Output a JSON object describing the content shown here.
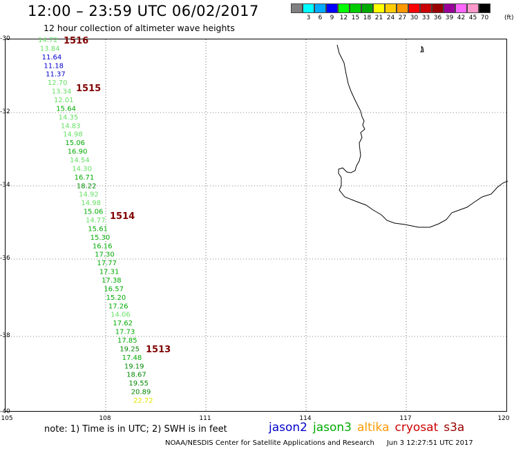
{
  "header": {
    "title": "12:00 – 23:59 UTC 06/02/2017",
    "subtitle": "12 hour collection of altimeter wave heights"
  },
  "colorbar": {
    "colors": [
      "#808080",
      "#00ffff",
      "#00aaff",
      "#0000ff",
      "#00ff00",
      "#00cc00",
      "#00aa00",
      "#ffff00",
      "#ffcc00",
      "#ff9900",
      "#ff0000",
      "#cc0000",
      "#990000",
      "#990099",
      "#ff66ff",
      "#ff99cc",
      "#000000"
    ],
    "labels": [
      "",
      "3",
      "6",
      "9",
      "12",
      "15",
      "18",
      "21",
      "24",
      "27",
      "30",
      "33",
      "36",
      "39",
      "42",
      "45",
      "70"
    ],
    "unit": "(ft)"
  },
  "axes": {
    "lat_labels": [
      "-30",
      "-32",
      "-34",
      "-36",
      "-38",
      "-40"
    ],
    "lon_labels": [
      "105",
      "108",
      "111",
      "114",
      "117",
      "120"
    ]
  },
  "map": {
    "passes": [
      "1516",
      "1515",
      "1514",
      "1513"
    ],
    "wave_heights": [
      {
        "v": "14.72",
        "c": "#66e066"
      },
      {
        "v": "13.84",
        "c": "#66e066"
      },
      {
        "v": "11.64",
        "c": "#0000cc"
      },
      {
        "v": "11.18",
        "c": "#0000cc"
      },
      {
        "v": "11.37",
        "c": "#0000cc"
      },
      {
        "v": "12.70",
        "c": "#66e066"
      },
      {
        "v": "13.34",
        "c": "#66e066"
      },
      {
        "v": "12.01",
        "c": "#66e066"
      },
      {
        "v": "15.64",
        "c": "#00aa00"
      },
      {
        "v": "14.35",
        "c": "#66e066"
      },
      {
        "v": "14.83",
        "c": "#66e066"
      },
      {
        "v": "14.98",
        "c": "#66e066"
      },
      {
        "v": "15.06",
        "c": "#00aa00"
      },
      {
        "v": "16.90",
        "c": "#00aa00"
      },
      {
        "v": "14.54",
        "c": "#66e066"
      },
      {
        "v": "14.30",
        "c": "#66e066"
      },
      {
        "v": "16.71",
        "c": "#00aa00"
      },
      {
        "v": "18.22",
        "c": "#008800"
      },
      {
        "v": "14.92",
        "c": "#66e066"
      },
      {
        "v": "14.98",
        "c": "#66e066"
      },
      {
        "v": "15.06",
        "c": "#00aa00"
      },
      {
        "v": "14.77",
        "c": "#66e066"
      },
      {
        "v": "15.61",
        "c": "#00aa00"
      },
      {
        "v": "15.30",
        "c": "#00aa00"
      },
      {
        "v": "16.16",
        "c": "#00aa00"
      },
      {
        "v": "17.30",
        "c": "#00aa00"
      },
      {
        "v": "17.77",
        "c": "#00aa00"
      },
      {
        "v": "17.31",
        "c": "#00aa00"
      },
      {
        "v": "17.38",
        "c": "#00aa00"
      },
      {
        "v": "16.57",
        "c": "#00aa00"
      },
      {
        "v": "15.20",
        "c": "#00aa00"
      },
      {
        "v": "17.26",
        "c": "#00aa00"
      },
      {
        "v": "14.06",
        "c": "#66e066"
      },
      {
        "v": "17.62",
        "c": "#00aa00"
      },
      {
        "v": "17.73",
        "c": "#00aa00"
      },
      {
        "v": "17.85",
        "c": "#00aa00"
      },
      {
        "v": "19.25",
        "c": "#008800"
      },
      {
        "v": "17.48",
        "c": "#00aa00"
      },
      {
        "v": "19.19",
        "c": "#008800"
      },
      {
        "v": "18.67",
        "c": "#008800"
      },
      {
        "v": "19.55",
        "c": "#008800"
      },
      {
        "v": "20.89",
        "c": "#008800"
      },
      {
        "v": "22.72",
        "c": "#e6e600"
      }
    ]
  },
  "note": "note:  1) Time is in UTC;  2) SWH is in feet",
  "legend": [
    {
      "label": "jason2",
      "color": "#0000cc"
    },
    {
      "label": "jason3",
      "color": "#00aa00"
    },
    {
      "label": "altika",
      "color": "#ff9900"
    },
    {
      "label": "cryosat",
      "color": "#cc0000"
    },
    {
      "label": "s3a",
      "color": "#990000"
    }
  ],
  "footer": {
    "credit": "NOAA/NESDIS Center for Satellite Applications and Research",
    "timestamp": "Jun  3 12:27:51 UTC 2017"
  }
}
